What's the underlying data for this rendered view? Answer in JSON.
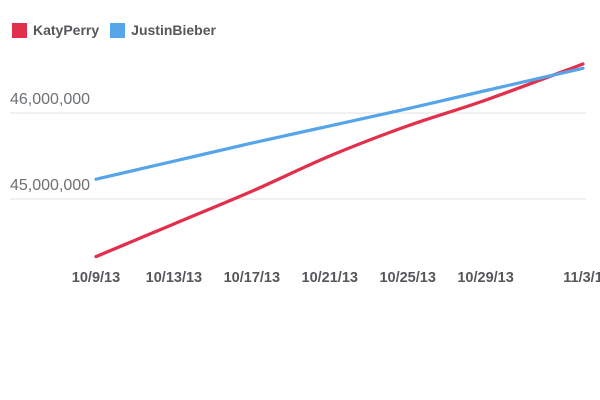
{
  "chart_data": {
    "type": "line",
    "title": "",
    "xlabel": "",
    "ylabel": "",
    "legend_position": "top-left",
    "grid": "horizontal-only",
    "background_color": "#ffffff",
    "gridline_color": "#e2e2e2",
    "axis_label_color": "#6d7074",
    "tick_label_color": "#55575a",
    "x_ticks": [
      {
        "label": "10/9/13",
        "day": 0
      },
      {
        "label": "10/13/13",
        "day": 4
      },
      {
        "label": "10/17/13",
        "day": 8
      },
      {
        "label": "10/21/13",
        "day": 12
      },
      {
        "label": "10/25/13",
        "day": 16
      },
      {
        "label": "10/29/13",
        "day": 20
      },
      {
        "label": "11/3/1",
        "day": 25
      }
    ],
    "y_ticks": [
      {
        "label": "46,000,000",
        "value": 46000000
      },
      {
        "label": "45,000,000",
        "value": 45000000
      }
    ],
    "x_days": [
      0,
      4,
      8,
      12,
      16,
      20,
      25
    ],
    "series": [
      {
        "name": "KatyPerry",
        "color": "#e22f4b",
        "values": [
          44330000,
          44710000,
          45090000,
          45500000,
          45850000,
          46150000,
          46570000
        ]
      },
      {
        "name": "JustinBieber",
        "color": "#56a5e9",
        "values": [
          45230000,
          45440000,
          45650000,
          45850000,
          46050000,
          46260000,
          46520000
        ]
      }
    ],
    "y_axis_range_visible": [
      44300000,
      46600000
    ]
  }
}
